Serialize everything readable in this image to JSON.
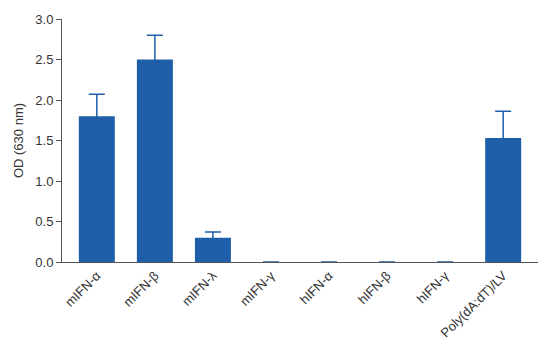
{
  "chart_data": {
    "type": "bar",
    "y_label": "OD (630 nm)",
    "categories": [
      "mIFN-α",
      "mIFN-β",
      "mIFN-λ",
      "mIFN-γ",
      "hIFN-α",
      "hIFN-β",
      "hIFN-γ",
      "Poly(dA:dT)/LV"
    ],
    "values": [
      1.8,
      2.5,
      0.3,
      0,
      0,
      0,
      0,
      1.53
    ],
    "errors": [
      0.27,
      0.3,
      0.07,
      0,
      0,
      0,
      0,
      0.33
    ],
    "color": "#1f5ea8",
    "ylim": [
      0,
      3
    ],
    "yticks": [
      {
        "value": 0,
        "label": "0.0"
      },
      {
        "value": 0.5,
        "label": "0.5"
      },
      {
        "value": 1,
        "label": "1.0"
      },
      {
        "value": 1.5,
        "label": "1.5"
      },
      {
        "value": 2,
        "label": "2.0"
      },
      {
        "value": 2.5,
        "label": "2.5"
      },
      {
        "value": 3,
        "label": "3.0"
      }
    ],
    "grid": false
  }
}
